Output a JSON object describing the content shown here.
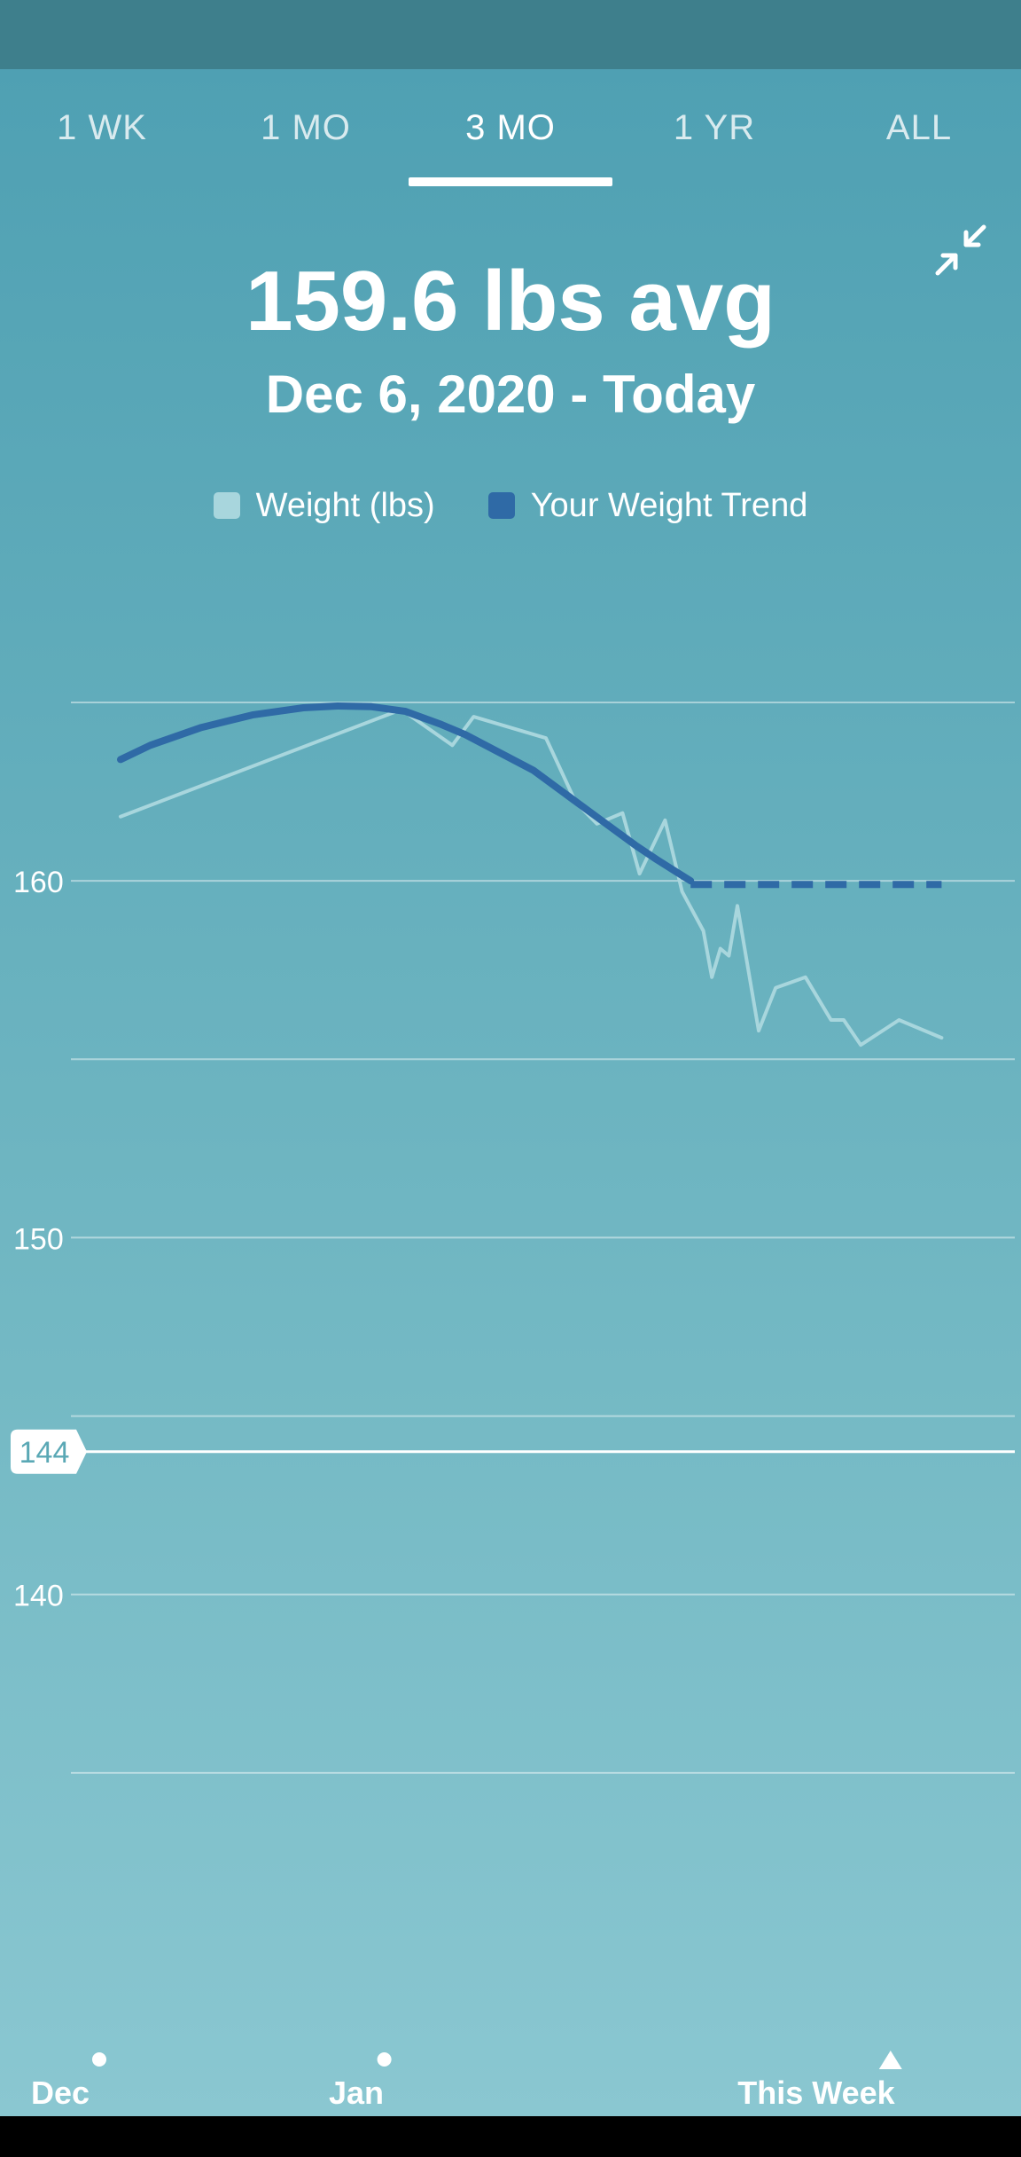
{
  "tabs": [
    {
      "label": "1 WK",
      "active": false
    },
    {
      "label": "1 MO",
      "active": false
    },
    {
      "label": "3 MO",
      "active": true
    },
    {
      "label": "1 YR",
      "active": false
    },
    {
      "label": "ALL",
      "active": false
    }
  ],
  "summary": {
    "average": "159.6 lbs avg",
    "range": "Dec 6, 2020 - Today"
  },
  "icons": {
    "collapse": "collapse-arrows-icon"
  },
  "colors": {
    "weight": "#a8d6dd",
    "trend": "#2f6aa6",
    "goal_marker": "#ffffff",
    "goal_text": "#5aa8b5"
  },
  "chart_data": {
    "type": "line",
    "legend": [
      {
        "label": "Weight (lbs)",
        "color": "#a8d6dd"
      },
      {
        "label": "Your Weight Trend",
        "color": "#2f6aa6"
      }
    ],
    "ylim": [
      130,
      165
    ],
    "gridlines": [
      135,
      140,
      145,
      150,
      155,
      160,
      165
    ],
    "y_tick_labels": [
      {
        "value": 160,
        "label": "160"
      },
      {
        "value": 150,
        "label": "150"
      },
      {
        "value": 140,
        "label": "140"
      }
    ],
    "goal": {
      "value": 144,
      "label": "144"
    },
    "xlim": [
      0,
      100
    ],
    "x_labels": [
      {
        "x": 0,
        "label": "Dec",
        "marker": "dot"
      },
      {
        "x": 33.5,
        "label": "Jan",
        "marker": "dot"
      },
      {
        "x": 93,
        "label": "This Week",
        "marker": "triangle"
      }
    ],
    "series": [
      {
        "name": "Weight (lbs)",
        "style": "solid",
        "points": [
          [
            2.5,
            161.8
          ],
          [
            35.5,
            164.8
          ],
          [
            41.5,
            163.8
          ],
          [
            44,
            164.6
          ],
          [
            52.5,
            164
          ],
          [
            56,
            162.2
          ],
          [
            58.5,
            161.6
          ],
          [
            61.5,
            161.9
          ],
          [
            63.5,
            160.2
          ],
          [
            66.5,
            161.7
          ],
          [
            68.5,
            159.7
          ],
          [
            71,
            158.6
          ],
          [
            72,
            157.3
          ],
          [
            73,
            158.1
          ],
          [
            74,
            157.9
          ],
          [
            75,
            159.3
          ],
          [
            77.5,
            155.8
          ],
          [
            79.5,
            157
          ],
          [
            83,
            157.3
          ],
          [
            86,
            156.1
          ],
          [
            87.5,
            156.1
          ],
          [
            89.5,
            155.4
          ],
          [
            94,
            156.1
          ],
          [
            99,
            155.6
          ]
        ]
      },
      {
        "name": "Your Weight Trend",
        "style": "solid",
        "points": [
          [
            2.5,
            163.4
          ],
          [
            6,
            163.8
          ],
          [
            12,
            164.3
          ],
          [
            18,
            164.65
          ],
          [
            24,
            164.85
          ],
          [
            28,
            164.9
          ],
          [
            32,
            164.88
          ],
          [
            36,
            164.75
          ],
          [
            40,
            164.4
          ],
          [
            43,
            164.1
          ],
          [
            47,
            163.6
          ],
          [
            51,
            163.1
          ],
          [
            55,
            162.4
          ],
          [
            59,
            161.7
          ],
          [
            63,
            161
          ],
          [
            65.5,
            160.6
          ],
          [
            67.5,
            160.3
          ],
          [
            69.5,
            160
          ]
        ]
      },
      {
        "name": "Your Weight Trend projection",
        "style": "dashed",
        "points": [
          [
            69.5,
            159.9
          ],
          [
            99,
            159.9
          ]
        ]
      }
    ]
  }
}
